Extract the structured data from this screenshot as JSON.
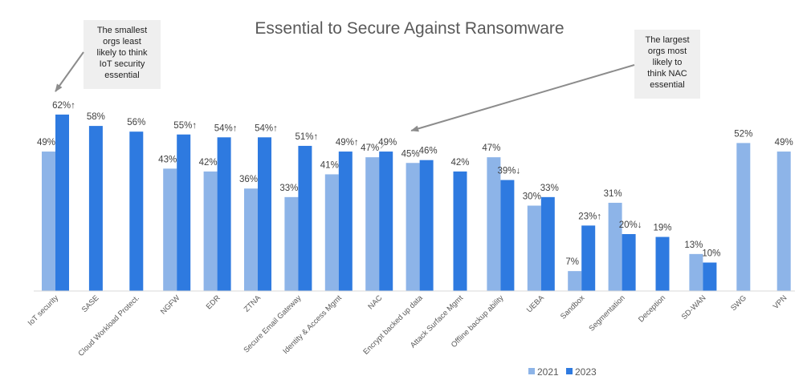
{
  "chart_data": {
    "type": "bar",
    "title": "Essential to Secure Against Ransomware",
    "categories": [
      "IoT security",
      "SASE",
      "Cloud Workload Protect.",
      "NGFW",
      "EDR",
      "ZTNA",
      "Secure Email Gateway",
      "Identity & Access Mgmt",
      "NAC",
      "Encrypt backed up data",
      "Attack Surface Mgmt",
      "Offline backup ability",
      "UEBA",
      "Sandbox",
      "Segmentation",
      "Deception",
      "SD-WAN",
      "SWG",
      "VPN"
    ],
    "series": [
      {
        "name": "2021",
        "color": "#8db4e8",
        "values": [
          49,
          null,
          null,
          43,
          42,
          36,
          33,
          41,
          47,
          45,
          null,
          47,
          30,
          7,
          31,
          null,
          13,
          52,
          49
        ]
      },
      {
        "name": "2023",
        "color": "#2e7ae0",
        "values": [
          62,
          58,
          56,
          55,
          54,
          54,
          51,
          49,
          49,
          46,
          42,
          39,
          33,
          23,
          20,
          19,
          10,
          null,
          null
        ]
      }
    ],
    "labels_2021": [
      "49%",
      "",
      "",
      "43%",
      "42%",
      "36%",
      "33%",
      "41%",
      "47%",
      "45%",
      "",
      "47%",
      "30%",
      "7%",
      "31%",
      "",
      "13%",
      "52%",
      "49%"
    ],
    "labels_2023": [
      "62%↑",
      "58%",
      "56%",
      "55%↑",
      "54%↑",
      "54%↑",
      "51%↑",
      "49%↑",
      "49%",
      "46%",
      "42%",
      "39%↓",
      "33%",
      "23%↑",
      "20%↓",
      "19%",
      "10%",
      "",
      ""
    ],
    "ylim": [
      0,
      70
    ],
    "grid": false,
    "legend_position": "bottom-right",
    "annotations": [
      {
        "text": "The smallest orgs least likely to think IoT security essential",
        "lines": [
          "The smallest",
          "orgs least",
          "likely to think",
          "IoT security",
          "essential"
        ],
        "target_category": "IoT security"
      },
      {
        "text": "The largest orgs most likely to think NAC essential",
        "lines": [
          "The largest",
          "orgs most",
          "likely to",
          "think NAC",
          "essential"
        ],
        "target_category": "NAC"
      }
    ]
  }
}
